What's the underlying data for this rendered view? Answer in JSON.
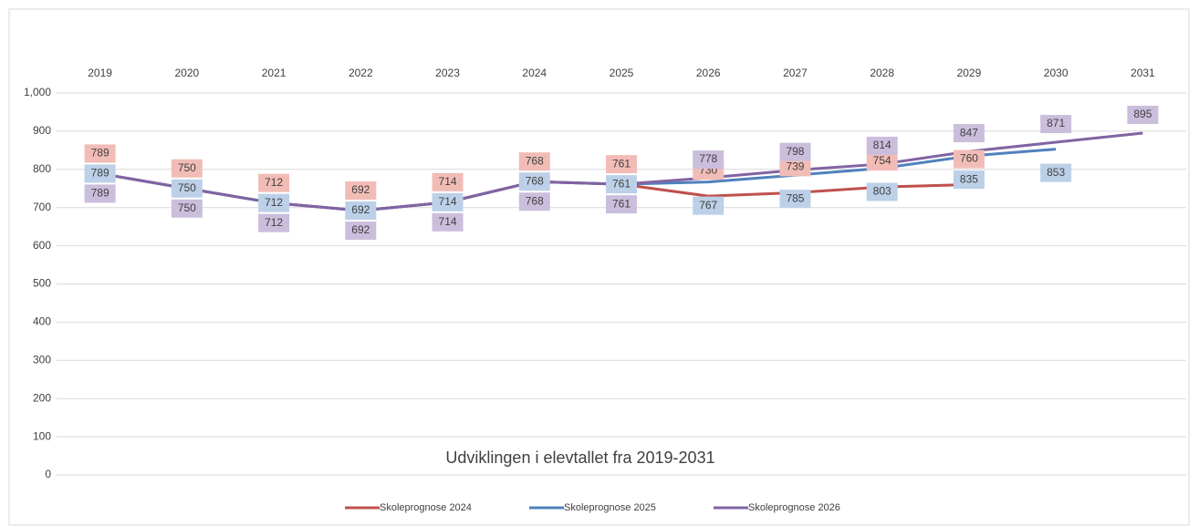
{
  "chart_data": {
    "type": "line",
    "title": "Udviklingen i elevtallet fra 2019-2031",
    "categories": [
      "2019",
      "2020",
      "2021",
      "2022",
      "2023",
      "2024",
      "2025",
      "2026",
      "2027",
      "2028",
      "2029",
      "2030",
      "2031"
    ],
    "series": [
      {
        "name": "Skoleprognose 2024",
        "color": "#c0504d",
        "values": [
          789,
          750,
          712,
          692,
          714,
          768,
          761,
          730,
          739,
          754,
          760,
          null,
          null
        ]
      },
      {
        "name": "Skoleprognose 2025",
        "color": "#4f81bd",
        "values": [
          789,
          750,
          712,
          692,
          714,
          768,
          761,
          767,
          785,
          803,
          835,
          853,
          null
        ]
      },
      {
        "name": "Skoleprognose 2026",
        "color": "#8064a2",
        "values": [
          789,
          750,
          712,
          692,
          714,
          768,
          761,
          778,
          798,
          814,
          847,
          871,
          895
        ]
      }
    ],
    "ylim": [
      0,
      1000
    ],
    "yticks": [
      0,
      100,
      200,
      300,
      400,
      500,
      600,
      700,
      800,
      900,
      {
        "value": 1000,
        "label": "1,000"
      }
    ],
    "grid": true,
    "legend": "bottom"
  }
}
